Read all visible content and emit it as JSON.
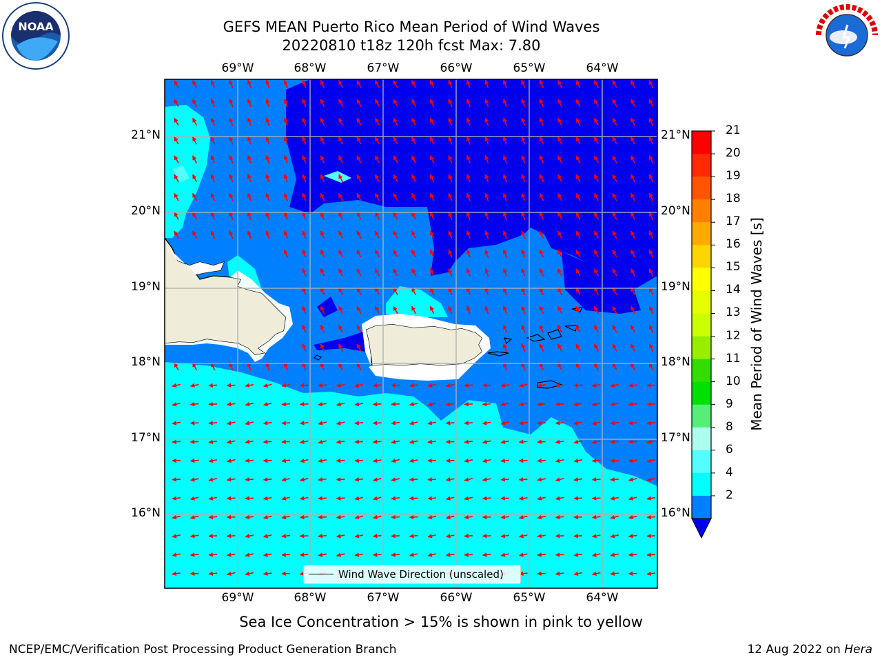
{
  "title_line1": "GEFS MEAN Puerto Rico Mean Period of Wind Waves",
  "title_line2": "20220810 t18z 120h fcst   Max: 7.80",
  "lon_labels": [
    "69°W",
    "68°W",
    "67°W",
    "66°W",
    "65°W",
    "64°W"
  ],
  "lat_labels": [
    "21°N",
    "20°N",
    "19°N",
    "18°N",
    "17°N",
    "16°N"
  ],
  "colorbar": {
    "label": "Mean Period of Wind Waves [s]",
    "ticks": [
      "21",
      "20",
      "19",
      "18",
      "17",
      "16",
      "15",
      "14",
      "13",
      "12",
      "11",
      "10",
      "9",
      "8",
      "6",
      "4",
      "2"
    ],
    "colors": [
      "#ff0000",
      "#ff2a00",
      "#ff5500",
      "#ff8000",
      "#ffaa00",
      "#ffd400",
      "#ffff00",
      "#e6ff00",
      "#ccff00",
      "#99ee00",
      "#33dd00",
      "#00e000",
      "#55ee77",
      "#aaffee",
      "#55ffff",
      "#00ffff",
      "#0080ff",
      "#0000ee"
    ]
  },
  "legend": {
    "label": "Wind Wave Direction (unscaled)"
  },
  "caption": "Sea Ice Concentration > 15% is shown in pink to yellow",
  "footer_left": "NCEP/EMC/Verification Post Processing Product Generation Branch",
  "footer_date": "12 Aug 2022 on ",
  "footer_host": "Hera",
  "logos": {
    "left": "NOAA",
    "right": "NATIONAL WEATHER SERVICE"
  }
}
